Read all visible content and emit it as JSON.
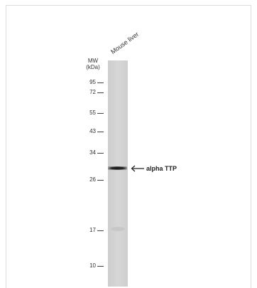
{
  "blot": {
    "lane_label": "Mouse liver",
    "mw_title_line1": "MW",
    "mw_title_line2": "(kDa)",
    "markers": [
      {
        "label": "95",
        "kda": 95
      },
      {
        "label": "72",
        "kda": 72
      },
      {
        "label": "55",
        "kda": 55
      },
      {
        "label": "43",
        "kda": 43
      },
      {
        "label": "34",
        "kda": 34
      },
      {
        "label": "26",
        "kda": 26
      },
      {
        "label": "17",
        "kda": 17
      },
      {
        "label": "10",
        "kda": 10
      }
    ],
    "band": {
      "label": "alpha TTP"
    },
    "colors": {
      "lane": "#d2d2d2",
      "band": "#1e1e1e",
      "text": "#333333"
    }
  }
}
